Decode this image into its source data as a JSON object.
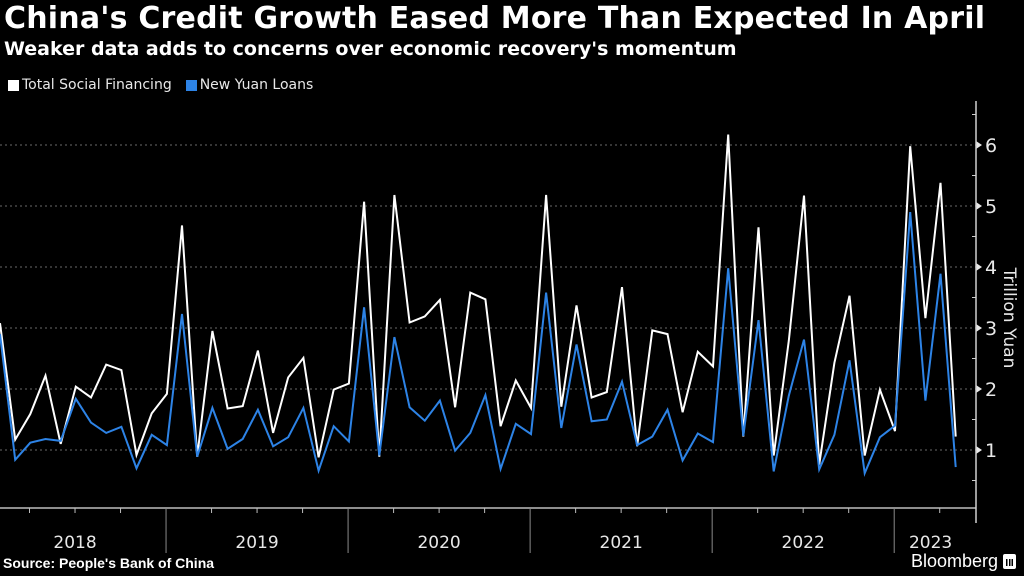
{
  "header": {
    "title": "China's Credit Growth Eased More Than Expected In April",
    "subtitle": "Weaker data adds to concerns over economic recovery's momentum"
  },
  "legend": [
    {
      "label": "Total Social Financing",
      "color": "#ffffff"
    },
    {
      "label": "New Yuan Loans",
      "color": "#2d83e6"
    }
  ],
  "footer": {
    "source": "Source: People's Bank of China",
    "brand": "Bloomberg"
  },
  "chart_data": {
    "type": "line",
    "title": "China's Credit Growth Eased More Than Expected In April",
    "subtitle": "Weaker data adds to concerns over economic recovery's momentum",
    "xlabel": "",
    "ylabel": "Trillion Yuan",
    "ylim": [
      0,
      6.6
    ],
    "yticks": [
      1,
      2,
      3,
      4,
      5,
      6
    ],
    "grid": true,
    "legend_position": "top-left",
    "x_start": "2018-01",
    "x_end": "2023-04",
    "x_frequency": "monthly",
    "year_labels": [
      "2018",
      "2019",
      "2020",
      "2021",
      "2022",
      "2023"
    ],
    "series": [
      {
        "name": "Total Social Financing",
        "color": "#ffffff",
        "values": [
          3.08,
          1.17,
          1.59,
          2.22,
          1.1,
          2.04,
          1.86,
          2.4,
          2.31,
          0.92,
          1.6,
          1.92,
          4.68,
          0.89,
          2.95,
          1.68,
          1.72,
          2.63,
          1.28,
          2.19,
          2.51,
          0.88,
          1.99,
          2.09,
          5.07,
          0.89,
          5.18,
          3.09,
          3.19,
          3.46,
          1.7,
          3.58,
          3.47,
          1.39,
          2.14,
          1.69,
          5.18,
          1.71,
          3.37,
          1.86,
          1.95,
          3.67,
          1.06,
          2.96,
          2.9,
          1.62,
          2.61,
          2.37,
          6.17,
          1.22,
          4.65,
          0.91,
          2.79,
          5.17,
          0.76,
          2.43,
          3.53,
          0.91,
          1.99,
          1.31,
          5.98,
          3.16,
          5.38,
          1.22
        ]
      },
      {
        "name": "New Yuan Loans",
        "color": "#2d83e6",
        "values": [
          2.9,
          0.84,
          1.12,
          1.18,
          1.15,
          1.84,
          1.45,
          1.28,
          1.38,
          0.7,
          1.25,
          1.08,
          3.23,
          0.89,
          1.69,
          1.02,
          1.18,
          1.66,
          1.06,
          1.21,
          1.69,
          0.66,
          1.39,
          1.14,
          3.34,
          0.91,
          2.85,
          1.7,
          1.48,
          1.81,
          0.99,
          1.28,
          1.9,
          0.69,
          1.43,
          1.26,
          3.58,
          1.36,
          2.73,
          1.47,
          1.5,
          2.12,
          1.08,
          1.22,
          1.66,
          0.83,
          1.27,
          1.13,
          3.98,
          1.23,
          3.13,
          0.65,
          1.89,
          2.81,
          0.68,
          1.25,
          2.47,
          0.62,
          1.21,
          1.4,
          4.9,
          1.81,
          3.89,
          0.72
        ]
      }
    ]
  }
}
